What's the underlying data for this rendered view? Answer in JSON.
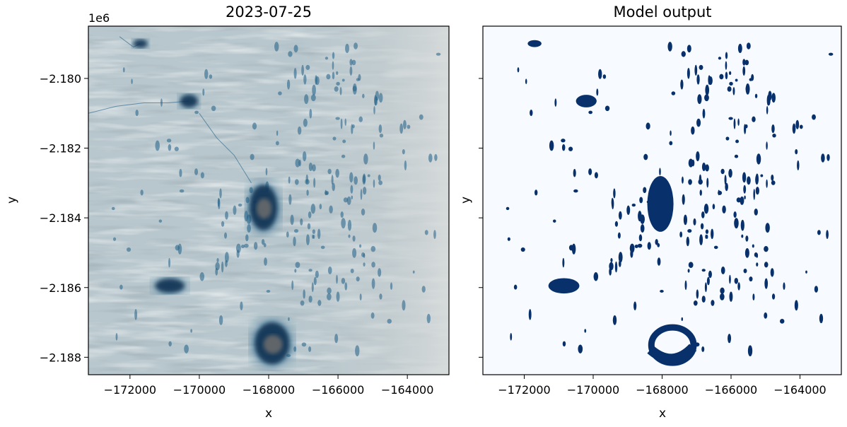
{
  "figure": {
    "panels": [
      {
        "title": "2023-07-25",
        "xlabel": "x",
        "ylabel": "y",
        "offset_label": "1e6",
        "kind": "satellite-image",
        "colors": {
          "ice_base": "#b8c7cd",
          "ice_dark": "#97aab2",
          "ice_bright": "#d6dde0",
          "water": "#1f5f86",
          "deep_water": "#0d2f4f",
          "rock": "#6d6d6d"
        }
      },
      {
        "title": "Model output",
        "xlabel": "x",
        "ylabel": "y",
        "kind": "binary-mask",
        "colors": {
          "background": "#f7fbff",
          "water": "#08306b"
        }
      }
    ]
  },
  "chart_data": [
    {
      "type": "heatmap",
      "title": "2023-07-25",
      "xlabel": "x",
      "ylabel": "y",
      "xlim": [
        -173200,
        -162800
      ],
      "ylim": [
        -2188500,
        -2178500
      ],
      "xticks": [
        -172000,
        -170000,
        -168000,
        -166000,
        -164000
      ],
      "xtick_labels": [
        "−172000",
        "−170000",
        "−168000",
        "−166000",
        "−164000"
      ],
      "yticks": [
        -2180000,
        -2182000,
        -2184000,
        -2186000,
        -2188000
      ],
      "ytick_labels": [
        "−2.180",
        "−2.182",
        "−2.184",
        "−2.186",
        "−2.188"
      ],
      "offset_label": "1e6",
      "lakes": [
        {
          "x": -168150,
          "y": -2183700,
          "rx": 400,
          "ry": 650
        },
        {
          "x": -167900,
          "y": -2187600,
          "rx": 500,
          "ry": 600
        },
        {
          "x": -170850,
          "y": -2185950,
          "rx": 420,
          "ry": 200
        },
        {
          "x": -170300,
          "y": -2180650,
          "rx": 250,
          "ry": 180
        },
        {
          "x": -171700,
          "y": -2179000,
          "rx": 200,
          "ry": 120
        }
      ]
    },
    {
      "type": "heatmap",
      "title": "Model output",
      "xlabel": "x",
      "ylabel": "y",
      "xlim": [
        -173200,
        -162800
      ],
      "ylim": [
        -2188500,
        -2178500
      ],
      "xticks": [
        -172000,
        -170000,
        -168000,
        -166000,
        -164000
      ],
      "xtick_labels": [
        "−172000",
        "−170000",
        "−168000",
        "−166000",
        "−164000"
      ],
      "yticks": [
        -2180000,
        -2182000,
        -2184000,
        -2186000,
        -2188000
      ],
      "sharey": true,
      "lakes": [
        {
          "x": -168050,
          "y": -2183600,
          "rx": 380,
          "ry": 800
        },
        {
          "x": -167700,
          "y": -2187650,
          "rx": 850,
          "ry": 650,
          "ring": true
        },
        {
          "x": -170850,
          "y": -2185950,
          "rx": 450,
          "ry": 220
        },
        {
          "x": -170200,
          "y": -2180650,
          "rx": 300,
          "ry": 180
        },
        {
          "x": -171700,
          "y": -2179000,
          "rx": 200,
          "ry": 100
        }
      ]
    }
  ]
}
